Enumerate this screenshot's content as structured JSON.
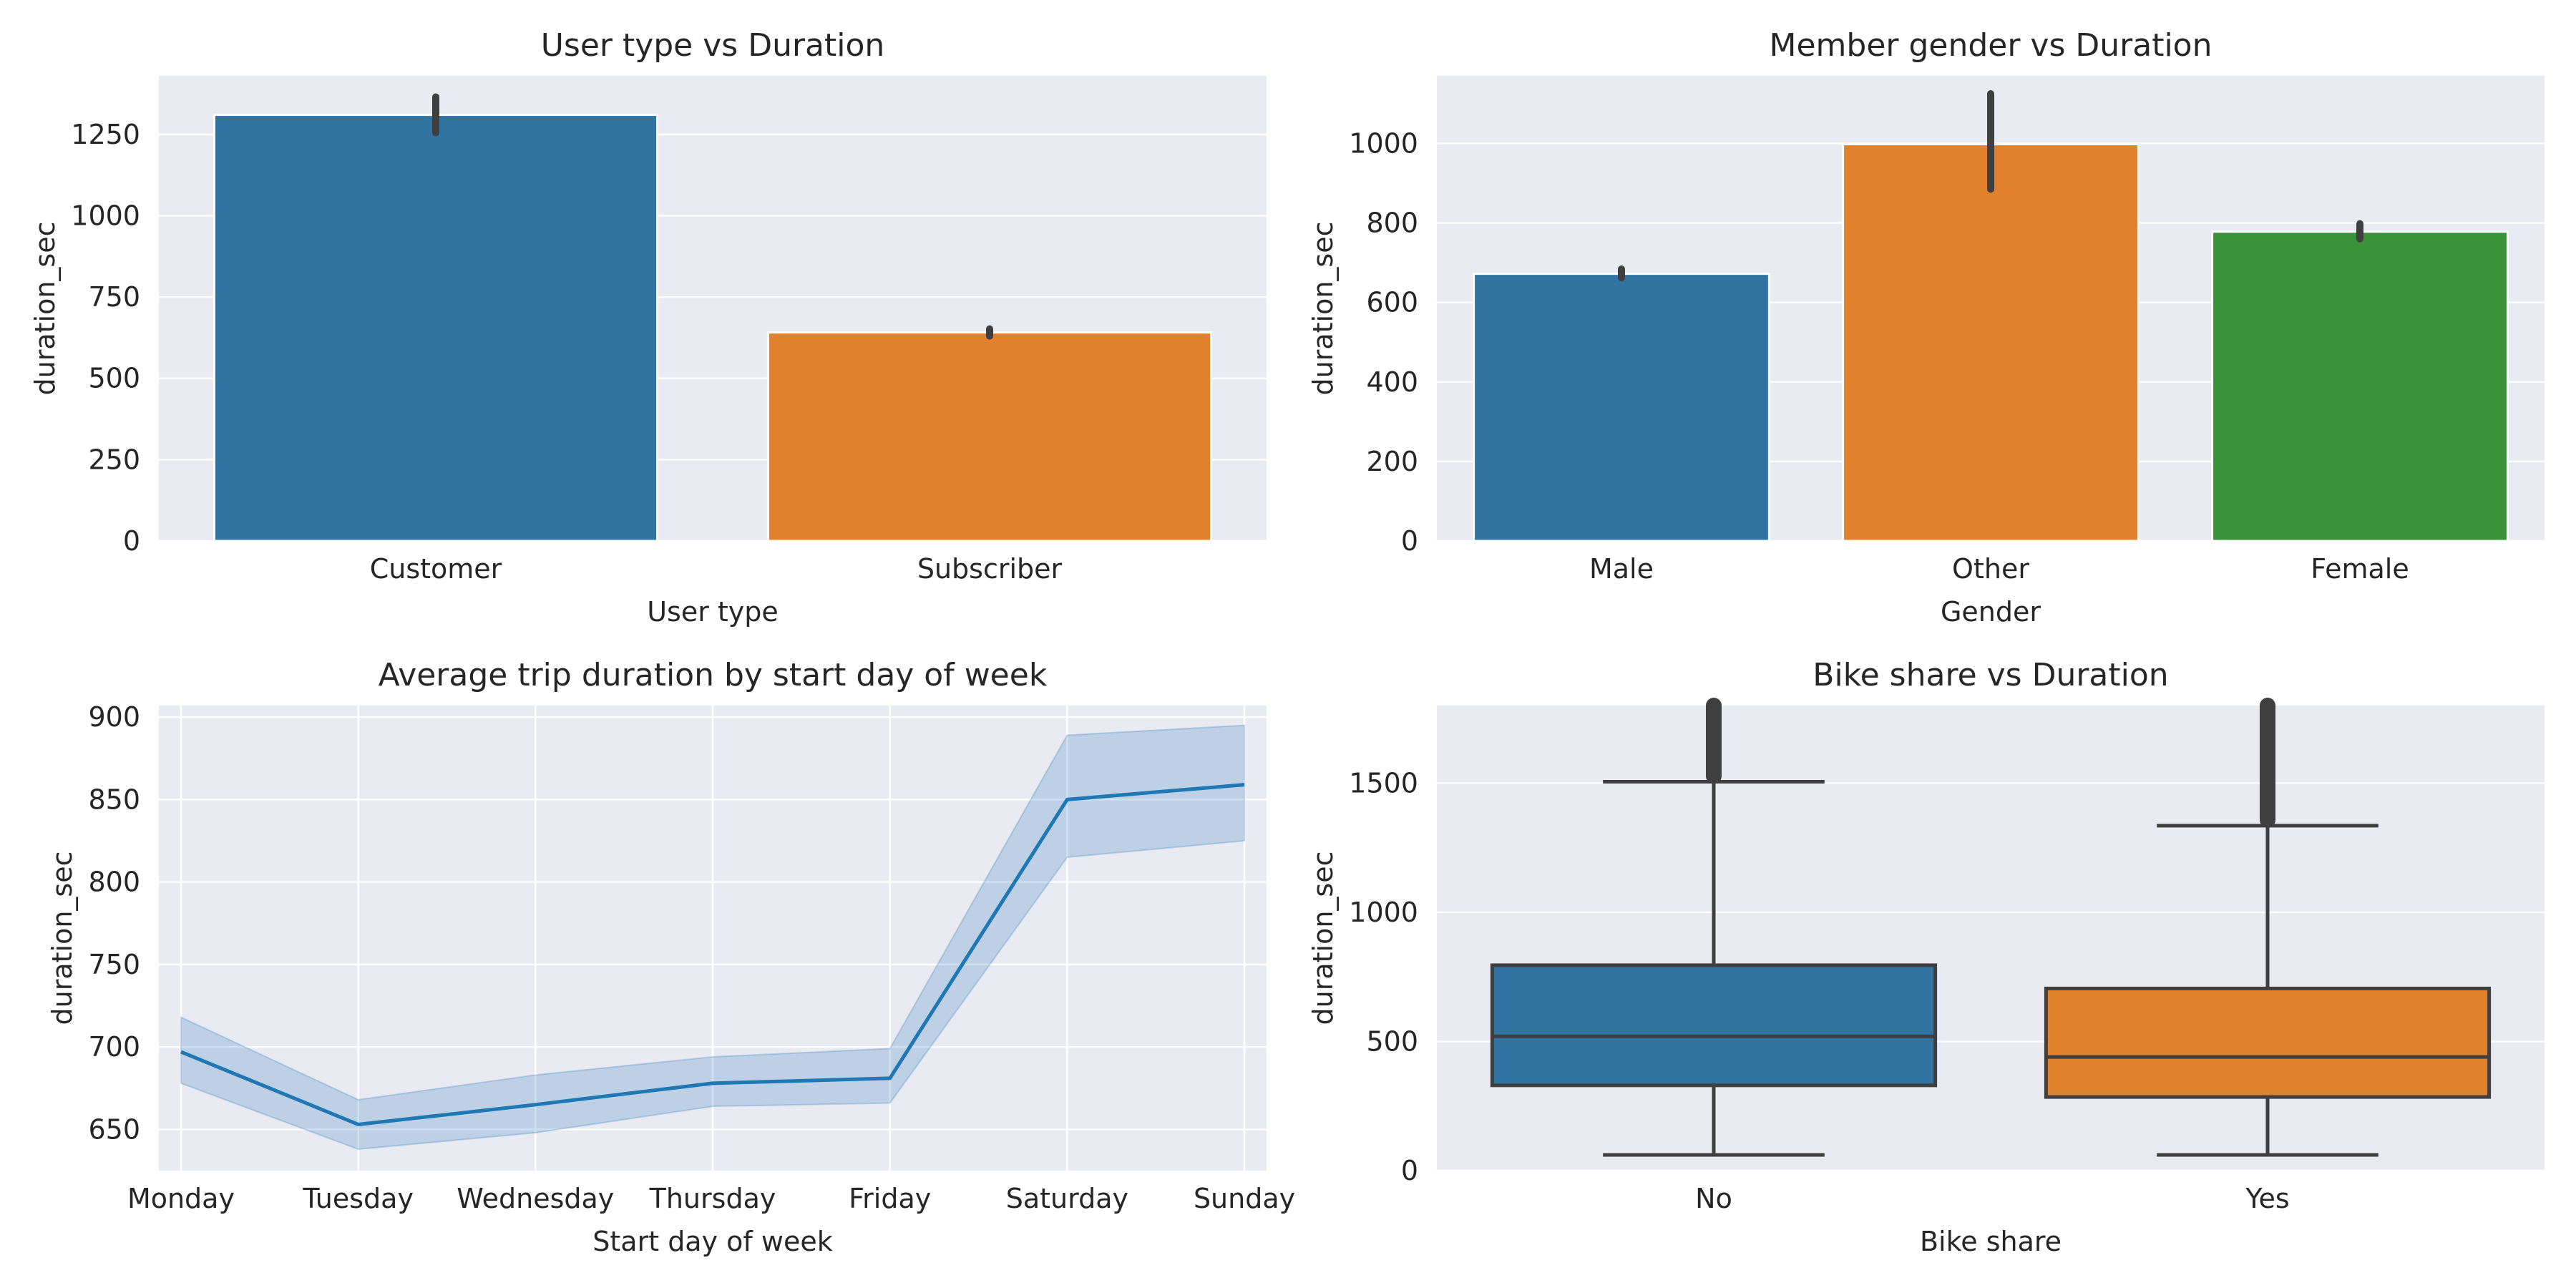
{
  "chart_data": [
    {
      "type": "bar",
      "title": "User type vs Duration",
      "xlabel": "User type",
      "ylabel": "duration_sec",
      "categories": [
        "Customer",
        "Subscriber"
      ],
      "values": [
        1310,
        641
      ],
      "error_bars": [
        [
          1255,
          1365
        ],
        [
          630,
          652
        ]
      ],
      "colors": [
        "#3274a1",
        "#e1812c"
      ],
      "ylim": [
        0,
        1430
      ],
      "yticks": [
        0,
        250,
        500,
        750,
        1000,
        1250
      ],
      "grid": true,
      "legend": "none"
    },
    {
      "type": "bar",
      "title": "Member gender vs Duration",
      "xlabel": "Gender",
      "ylabel": "duration_sec",
      "categories": [
        "Male",
        "Other",
        "Female"
      ],
      "values": [
        672,
        998,
        778
      ],
      "error_bars": [
        [
          662,
          684
        ],
        [
          885,
          1125
        ],
        [
          760,
          798
        ]
      ],
      "colors": [
        "#3274a1",
        "#e1812c",
        "#3a923a"
      ],
      "ylim": [
        0,
        1170
      ],
      "yticks": [
        0,
        200,
        400,
        600,
        800,
        1000
      ],
      "grid": true,
      "legend": "none"
    },
    {
      "type": "line",
      "title": "Average trip duration by start day of week",
      "xlabel": "Start day of week",
      "ylabel": "duration_sec",
      "categories": [
        "Monday",
        "Tuesday",
        "Wednesday",
        "Thursday",
        "Friday",
        "Saturday",
        "Sunday"
      ],
      "values": [
        697,
        653,
        665,
        678,
        681,
        850,
        859
      ],
      "ci_low": [
        678,
        638,
        648,
        664,
        666,
        815,
        825
      ],
      "ci_high": [
        718,
        668,
        683,
        694,
        699,
        889,
        895
      ],
      "color": "#1f77b4",
      "ylim": [
        625,
        907
      ],
      "yticks": [
        650,
        700,
        750,
        800,
        850,
        900
      ],
      "grid": true,
      "legend": "none"
    },
    {
      "type": "box",
      "title": "Bike share vs Duration",
      "xlabel": "Bike share",
      "ylabel": "duration_sec",
      "categories": [
        "No",
        "Yes"
      ],
      "boxes": [
        {
          "whisker_low": 61,
          "q1": 330,
          "median": 520,
          "q3": 795,
          "whisker_high": 1505,
          "outliers_from": 1505,
          "outliers_to": 1800
        },
        {
          "whisker_low": 61,
          "q1": 285,
          "median": 440,
          "q3": 705,
          "whisker_high": 1335,
          "outliers_from": 1335,
          "outliers_to": 1800
        }
      ],
      "colors": [
        "#3274a1",
        "#e1812c"
      ],
      "ylim": [
        0,
        1800
      ],
      "yticks": [
        0,
        500,
        1000,
        1500
      ],
      "grid": true,
      "legend": "none"
    }
  ]
}
